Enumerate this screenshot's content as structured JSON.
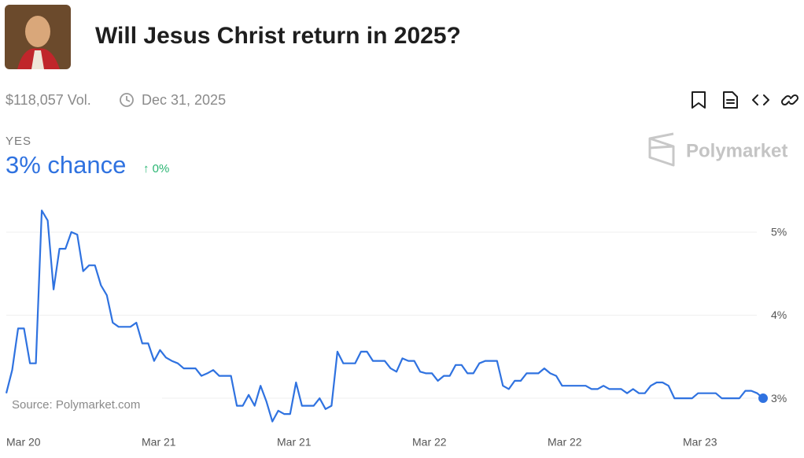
{
  "header": {
    "title": "Will Jesus Christ return in 2025?",
    "volume": "$118,057 Vol.",
    "end_date": "Dec 31, 2025",
    "outcome": "YES",
    "chance": "3% chance",
    "change": "↑ 0%",
    "brand": "Polymarket"
  },
  "chart_data": {
    "type": "line",
    "source": "Source: Polymarket.com",
    "x_labels": [
      "Mar 20",
      "Mar 21",
      "Mar 21",
      "Mar 22",
      "Mar 22",
      "Mar 23"
    ],
    "ylim": [
      2.65,
      5.35
    ],
    "yticks": [
      {
        "value": 3,
        "label": "3%"
      },
      {
        "value": 4,
        "label": "4%"
      },
      {
        "value": 5,
        "label": "5%"
      }
    ],
    "grid": true,
    "series": [
      {
        "name": "Yes",
        "color": "#2f72e0",
        "values": [
          3.06,
          3.34,
          3.84,
          3.84,
          3.42,
          3.42,
          5.26,
          5.14,
          4.31,
          4.8,
          4.8,
          5.0,
          4.97,
          4.53,
          4.6,
          4.6,
          4.36,
          4.24,
          3.91,
          3.86,
          3.86,
          3.86,
          3.91,
          3.66,
          3.66,
          3.45,
          3.58,
          3.49,
          3.45,
          3.42,
          3.36,
          3.36,
          3.36,
          3.27,
          3.3,
          3.34,
          3.27,
          3.27,
          3.27,
          2.91,
          2.91,
          3.04,
          2.91,
          3.15,
          2.96,
          2.72,
          2.85,
          2.81,
          2.81,
          3.19,
          2.91,
          2.91,
          2.91,
          3.0,
          2.87,
          2.91,
          3.56,
          3.42,
          3.42,
          3.42,
          3.56,
          3.56,
          3.45,
          3.45,
          3.45,
          3.36,
          3.32,
          3.48,
          3.45,
          3.45,
          3.32,
          3.3,
          3.3,
          3.21,
          3.27,
          3.27,
          3.4,
          3.4,
          3.3,
          3.3,
          3.42,
          3.45,
          3.45,
          3.45,
          3.15,
          3.11,
          3.21,
          3.21,
          3.3,
          3.3,
          3.3,
          3.36,
          3.3,
          3.27,
          3.15,
          3.15,
          3.15,
          3.15,
          3.15,
          3.11,
          3.11,
          3.15,
          3.11,
          3.11,
          3.11,
          3.06,
          3.11,
          3.06,
          3.06,
          3.15,
          3.19,
          3.19,
          3.15,
          3.0,
          3.0,
          3.0,
          3.0,
          3.06,
          3.06,
          3.06,
          3.06,
          3.0,
          3.0,
          3.0,
          3.0,
          3.09,
          3.09,
          3.06,
          3.0
        ]
      }
    ]
  }
}
